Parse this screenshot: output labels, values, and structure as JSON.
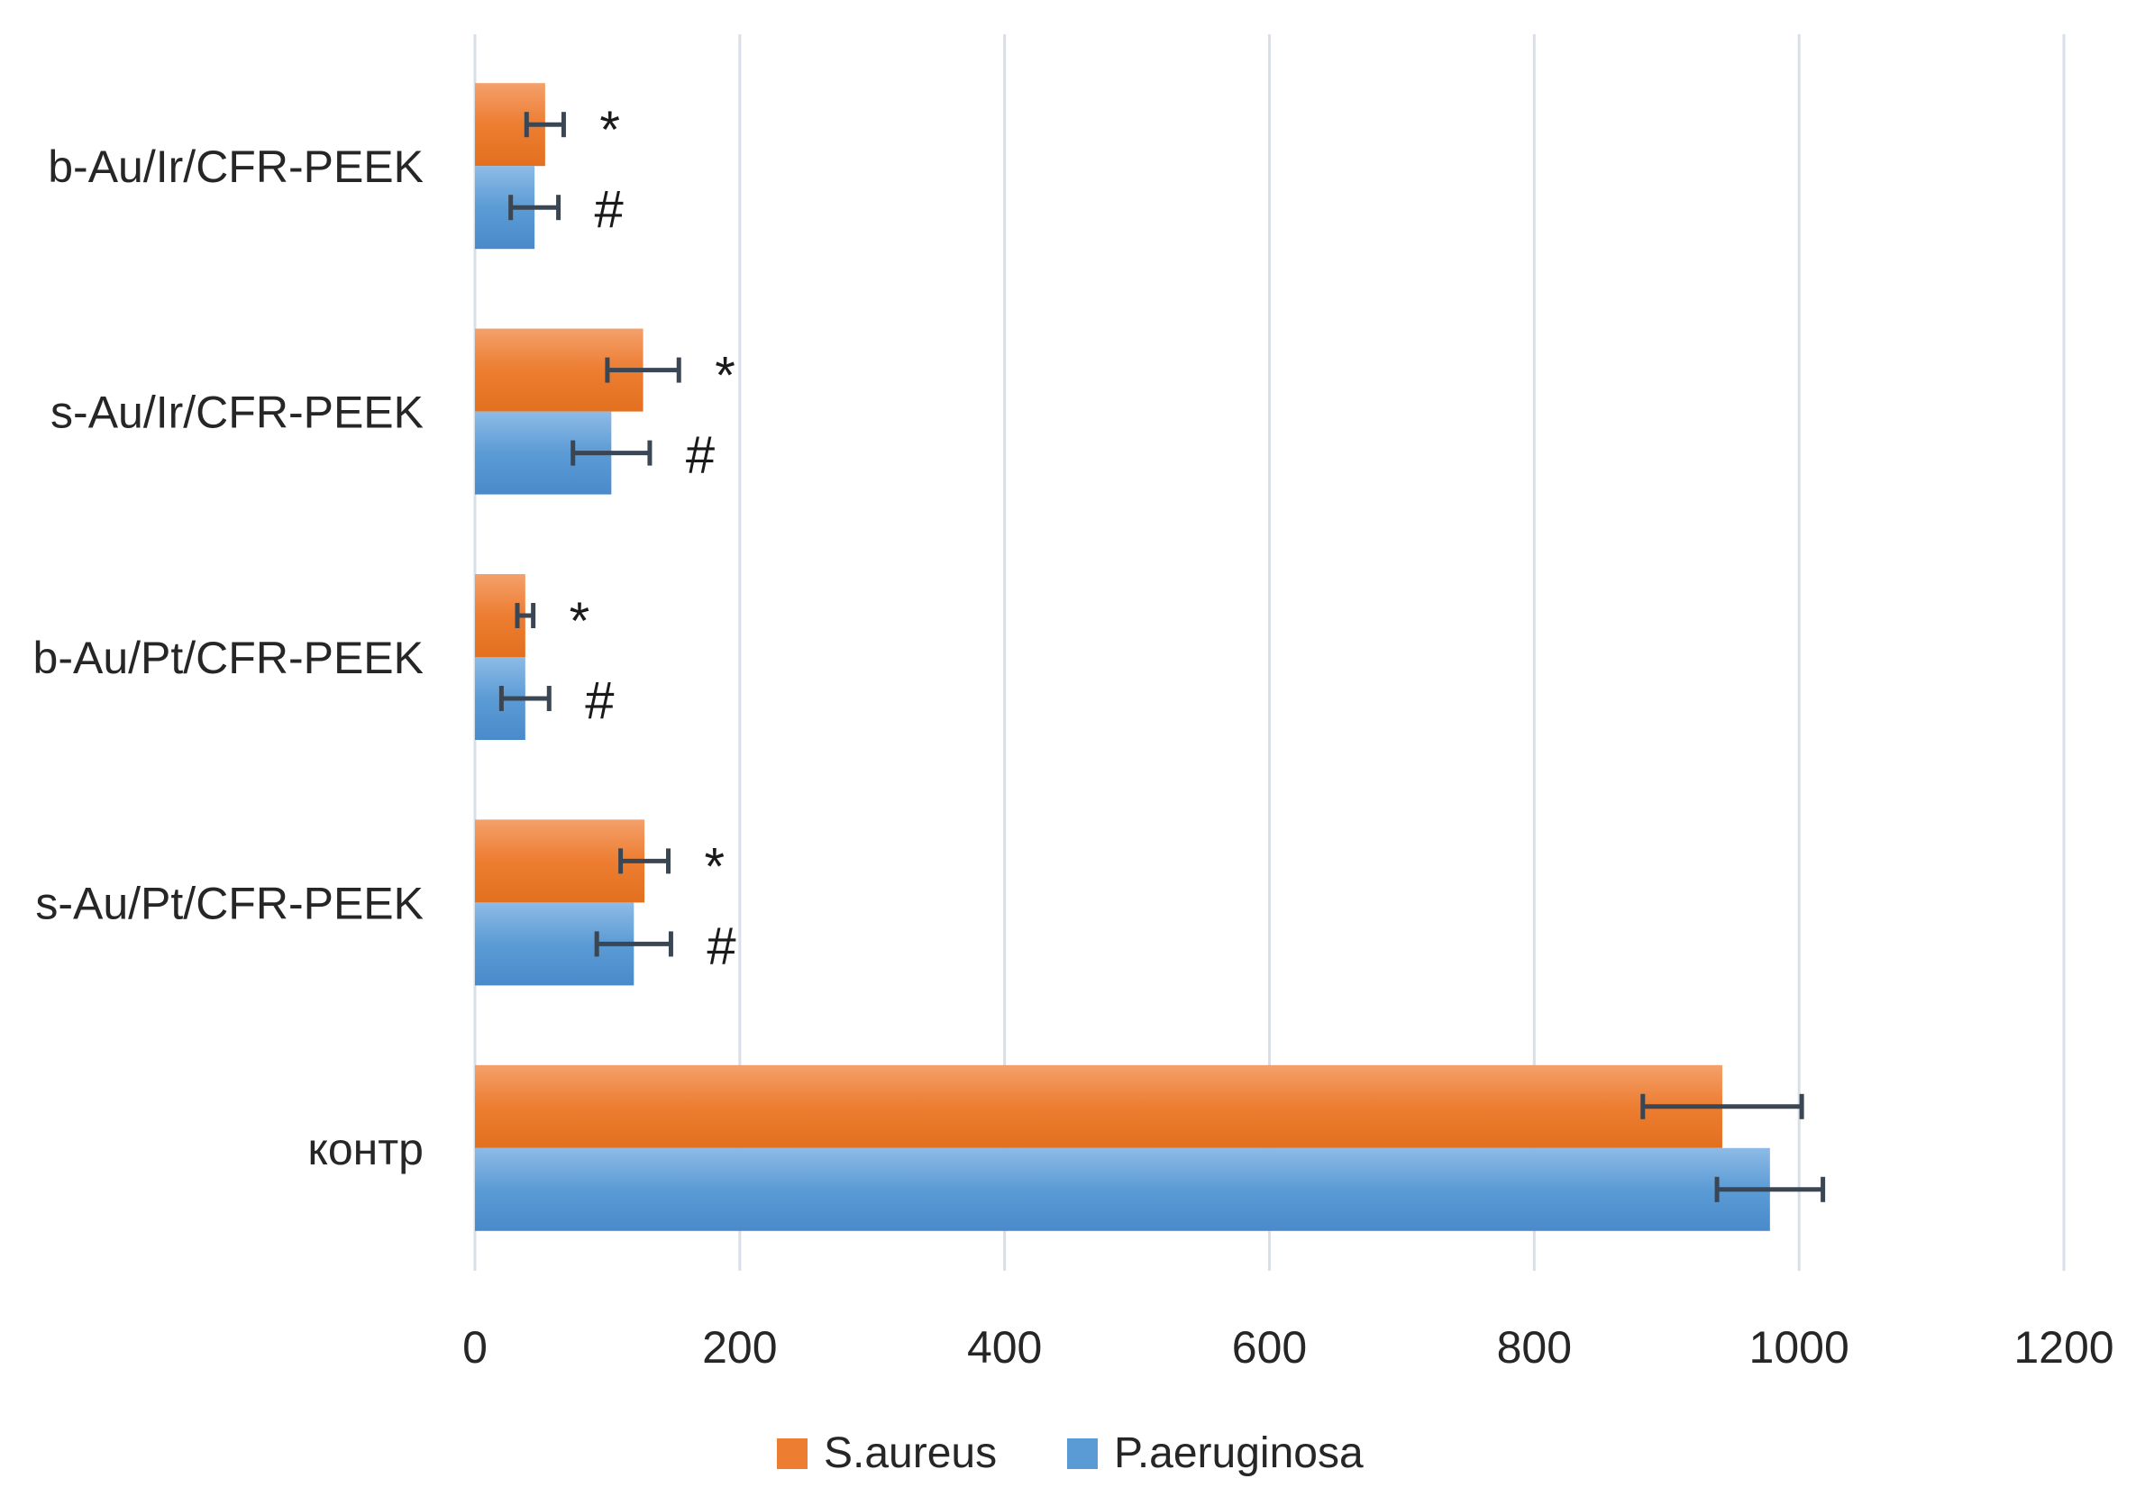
{
  "chart_data": {
    "type": "bar",
    "orientation": "horizontal",
    "title": "",
    "xlabel": "",
    "ylabel": "",
    "xlim": [
      0,
      1200
    ],
    "ticks": [
      "0",
      "200",
      "400",
      "600",
      "800",
      "1000",
      "1200"
    ],
    "tick_values": [
      0,
      200,
      400,
      600,
      800,
      1000,
      1200
    ],
    "grid": true,
    "legend_position": "bottom",
    "categories": [
      "b-Au/Ir/CFR-PEEK",
      "s-Au/Ir/CFR-PEEK",
      "b-Au/Pt/CFR-PEEK",
      "s-Au/Pt/CFR-PEEK",
      "контр"
    ],
    "series": [
      {
        "name": "S.aureus",
        "color": "#ed7d31",
        "values": [
          53,
          127,
          38,
          128,
          942
        ],
        "errors": [
          14,
          27,
          6,
          18,
          60
        ],
        "marks": [
          "*",
          "*",
          "*",
          "*",
          ""
        ]
      },
      {
        "name": "P.aeruginosa",
        "color": "#5b9bd5",
        "values": [
          45,
          103,
          38,
          120,
          978
        ],
        "errors": [
          18,
          29,
          18,
          28,
          40
        ],
        "marks": [
          "#",
          "#",
          "#",
          "#",
          ""
        ]
      }
    ]
  }
}
